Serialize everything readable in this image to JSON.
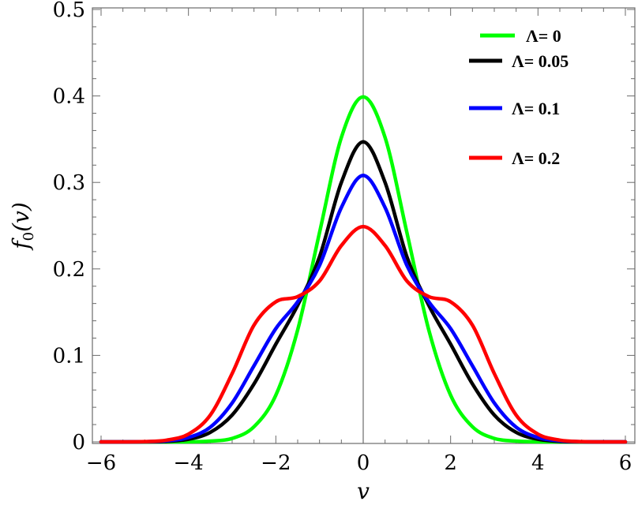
{
  "chart_data": {
    "type": "line",
    "xlabel": "v",
    "ylabel": "f0(v)",
    "ylabel_parts": {
      "base": "f",
      "subscript": "0",
      "arg": "(v)"
    },
    "xlim": [
      -6,
      6
    ],
    "ylim": [
      0,
      0.5
    ],
    "xticks": [
      -6,
      -4,
      -2,
      0,
      2,
      4,
      6
    ],
    "xtick_labels": [
      "−6",
      "−4",
      "−2",
      "0",
      "2",
      "4",
      "6"
    ],
    "yticks": [
      0,
      0.1,
      0.2,
      0.3,
      0.4,
      0.5
    ],
    "ytick_labels": [
      "0",
      "0.1",
      "0.2",
      "0.3",
      "0.4",
      "0.5"
    ],
    "grid": false,
    "legend_position": "top-right",
    "x": [
      -6,
      -5.5,
      -5,
      -4.5,
      -4,
      -3.5,
      -3,
      -2.5,
      -2,
      -1.5,
      -1,
      -0.5,
      0,
      0.5,
      1,
      1.5,
      2,
      2.5,
      3,
      3.5,
      4,
      4.5,
      5,
      5.5,
      6
    ],
    "series": [
      {
        "name": "Λ= 0",
        "color": "#00ff00",
        "values": [
          0,
          0,
          0,
          0,
          0.0001,
          0.0009,
          0.004,
          0.0175,
          0.054,
          0.1295,
          0.242,
          0.352,
          0.399,
          0.352,
          0.242,
          0.1295,
          0.054,
          0.0175,
          0.004,
          0.0009,
          0.0001,
          0,
          0,
          0,
          0
        ]
      },
      {
        "name": "Λ= 0.05",
        "color": "#000000",
        "values": [
          0,
          0,
          0.0001,
          0.0006,
          0.003,
          0.011,
          0.031,
          0.067,
          0.113,
          0.158,
          0.214,
          0.3,
          0.347,
          0.3,
          0.214,
          0.158,
          0.113,
          0.067,
          0.031,
          0.011,
          0.003,
          0.0006,
          0.0001,
          0,
          0
        ]
      },
      {
        "name": "Λ= 0.1",
        "color": "#0000ff",
        "values": [
          0,
          0,
          0.0002,
          0.0012,
          0.005,
          0.017,
          0.045,
          0.088,
          0.131,
          0.162,
          0.204,
          0.271,
          0.308,
          0.271,
          0.204,
          0.162,
          0.131,
          0.088,
          0.045,
          0.017,
          0.005,
          0.0012,
          0.0002,
          0,
          0
        ]
      },
      {
        "name": "Λ= 0.2",
        "color": "#ff0000",
        "values": [
          0,
          0,
          0.0003,
          0.002,
          0.009,
          0.031,
          0.079,
          0.135,
          0.162,
          0.168,
          0.186,
          0.227,
          0.249,
          0.227,
          0.186,
          0.168,
          0.162,
          0.135,
          0.079,
          0.031,
          0.009,
          0.002,
          0.0003,
          0,
          0
        ]
      }
    ]
  }
}
